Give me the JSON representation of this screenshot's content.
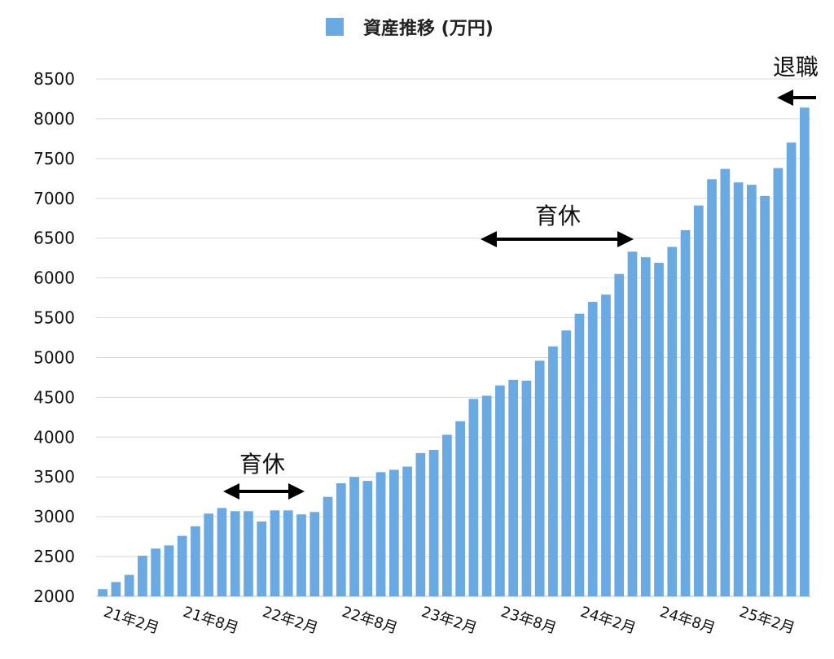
{
  "colors": {
    "bar": "#6aa9e2",
    "grid": "#d8d8d8",
    "axis": "#bfbfbf",
    "arrow": "#000000"
  },
  "legend": {
    "label": "資産推移 (万円)"
  },
  "annotations": {
    "leave1": "育休",
    "leave2": "育休",
    "retire": "退職"
  },
  "chart_data": {
    "type": "bar",
    "title": "",
    "xlabel": "",
    "ylabel": "",
    "ylim": [
      2000,
      8500
    ],
    "y_ticks": [
      2000,
      2500,
      3000,
      3500,
      4000,
      4500,
      5000,
      5500,
      6000,
      6500,
      7000,
      7500,
      8000,
      8500
    ],
    "grid": true,
    "legend_position": "top-center",
    "x_tick_labels": [
      "21年2月",
      "21年8月",
      "22年2月",
      "22年8月",
      "23年2月",
      "23年8月",
      "24年2月",
      "24年8月",
      "25年2月"
    ],
    "series": [
      {
        "name": "資産推移 (万円)",
        "values": [
          2090,
          2180,
          2270,
          2510,
          2600,
          2640,
          2760,
          2880,
          3040,
          3110,
          3070,
          3070,
          2940,
          3080,
          3080,
          3030,
          3060,
          3250,
          3420,
          3500,
          3450,
          3560,
          3590,
          3630,
          3800,
          3840,
          4030,
          4200,
          4480,
          4520,
          4650,
          4720,
          4710,
          4960,
          5140,
          5340,
          5550,
          5700,
          5790,
          6050,
          6330,
          6260,
          6190,
          6390,
          6600,
          6910,
          7240,
          7370,
          7200,
          7170,
          7030,
          7380,
          7700,
          8140
        ]
      }
    ]
  }
}
